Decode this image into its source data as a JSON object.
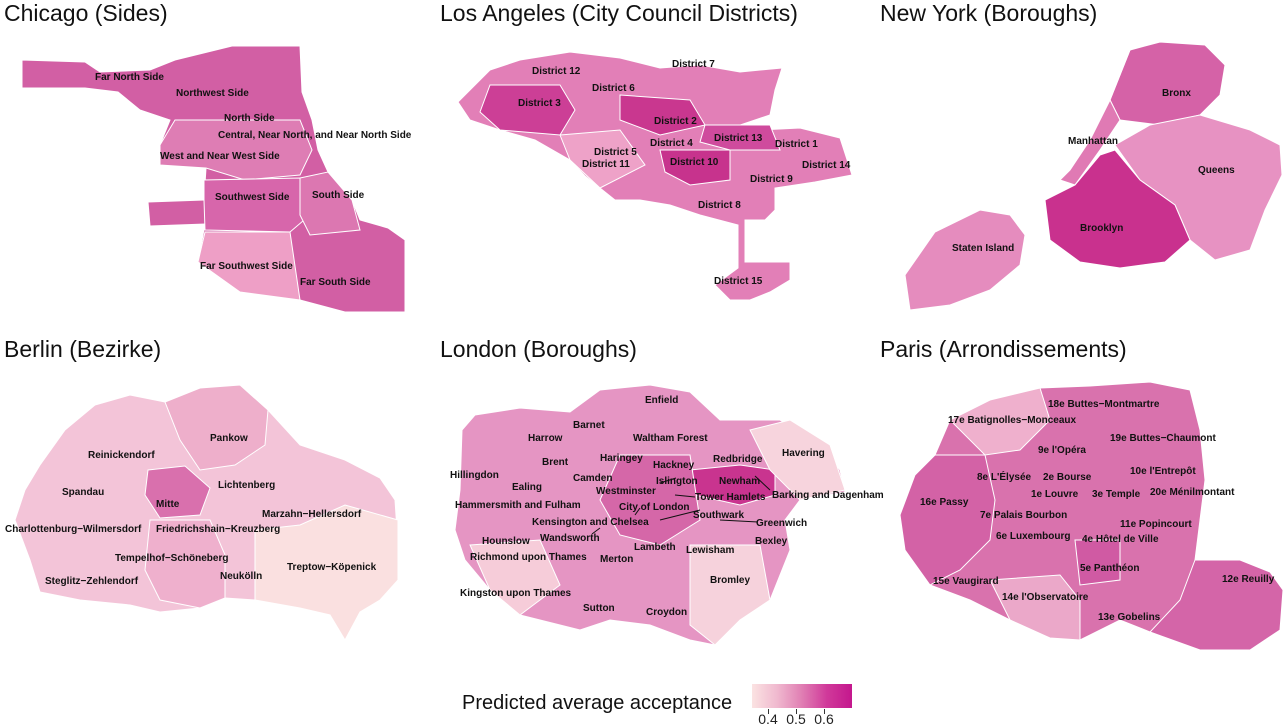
{
  "panels": [
    {
      "id": "chicago",
      "title": "Chicago (Sides)",
      "color": "#d25fa4",
      "regions": [
        {
          "name": "Far North Side",
          "value": 0.63
        },
        {
          "name": "Northwest Side",
          "value": 0.57
        },
        {
          "name": "North Side",
          "value": 0.58
        },
        {
          "name": "Central, Near North, and Near North Side",
          "value": 0.62
        },
        {
          "name": "West and Near West Side",
          "value": 0.58
        },
        {
          "name": "Southwest Side",
          "value": 0.6
        },
        {
          "name": "South Side",
          "value": 0.56
        },
        {
          "name": "Far Southwest Side",
          "value": 0.5
        },
        {
          "name": "Far South Side",
          "value": 0.6
        }
      ]
    },
    {
      "id": "los_angeles",
      "title": "Los Angeles (City Council Districts)",
      "color": "#d45ea4",
      "regions": [
        {
          "name": "District 12",
          "value": 0.55
        },
        {
          "name": "District 7",
          "value": 0.56
        },
        {
          "name": "District 6",
          "value": 0.58
        },
        {
          "name": "District 3",
          "value": 0.64
        },
        {
          "name": "District 2",
          "value": 0.63
        },
        {
          "name": "District 4",
          "value": 0.56
        },
        {
          "name": "District 13",
          "value": 0.63
        },
        {
          "name": "District 1",
          "value": 0.6
        },
        {
          "name": "District 5",
          "value": 0.52
        },
        {
          "name": "District 11",
          "value": 0.54
        },
        {
          "name": "District 10",
          "value": 0.64
        },
        {
          "name": "District 14",
          "value": 0.61
        },
        {
          "name": "District 9",
          "value": 0.6
        },
        {
          "name": "District 8",
          "value": 0.55
        },
        {
          "name": "District 15",
          "value": 0.58
        }
      ]
    },
    {
      "id": "new_york",
      "title": "New York (Boroughs)",
      "color": "#e085bb",
      "regions": [
        {
          "name": "Bronx",
          "value": 0.57
        },
        {
          "name": "Manhattan",
          "value": 0.55
        },
        {
          "name": "Queens",
          "value": 0.52
        },
        {
          "name": "Brooklyn",
          "value": 0.66
        },
        {
          "name": "Staten Island",
          "value": 0.52
        }
      ]
    },
    {
      "id": "berlin",
      "title": "Berlin (Bezirke)",
      "color": "#efb7cf",
      "regions": [
        {
          "name": "Reinickendorf",
          "value": 0.47
        },
        {
          "name": "Pankow",
          "value": 0.49
        },
        {
          "name": "Spandau",
          "value": 0.47
        },
        {
          "name": "Mitte",
          "value": 0.59
        },
        {
          "name": "Lichtenberg",
          "value": 0.47
        },
        {
          "name": "Marzahn−Hellersdorf",
          "value": 0.43
        },
        {
          "name": "Charlottenburg−Wilmersdorf",
          "value": 0.49
        },
        {
          "name": "Friedrichshain−Kreuzberg",
          "value": 0.52
        },
        {
          "name": "Tempelhof−Schöneberg",
          "value": 0.5
        },
        {
          "name": "Steglitz−Zehlendorf",
          "value": 0.48
        },
        {
          "name": "Neukölln",
          "value": 0.45
        },
        {
          "name": "Treptow−Köpenick",
          "value": 0.39
        }
      ]
    },
    {
      "id": "london",
      "title": "London (Boroughs)",
      "color": "#e391c1",
      "regions": [
        {
          "name": "Enfield",
          "value": 0.55
        },
        {
          "name": "Barnet",
          "value": 0.47
        },
        {
          "name": "Harrow",
          "value": 0.51
        },
        {
          "name": "Waltham Forest",
          "value": 0.6
        },
        {
          "name": "Havering",
          "value": 0.42
        },
        {
          "name": "Haringey",
          "value": 0.56
        },
        {
          "name": "Redbridge",
          "value": 0.58
        },
        {
          "name": "Brent",
          "value": 0.54
        },
        {
          "name": "Hackney",
          "value": 0.6
        },
        {
          "name": "Camden",
          "value": 0.52
        },
        {
          "name": "Hillingdon",
          "value": 0.51
        },
        {
          "name": "Islington",
          "value": 0.6
        },
        {
          "name": "Newham",
          "value": 0.66
        },
        {
          "name": "Ealing",
          "value": 0.53
        },
        {
          "name": "Westminster",
          "value": 0.51
        },
        {
          "name": "Tower Hamlets",
          "value": 0.63
        },
        {
          "name": "Barking and Dagenham",
          "value": 0.56
        },
        {
          "name": "Hammersmith and Fulham",
          "value": 0.52
        },
        {
          "name": "City of London",
          "value": 0.48
        },
        {
          "name": "Kensington and Chelsea",
          "value": 0.5
        },
        {
          "name": "Southwark",
          "value": 0.59
        },
        {
          "name": "Greenwich",
          "value": 0.55
        },
        {
          "name": "Hounslow",
          "value": 0.5
        },
        {
          "name": "Wandsworth",
          "value": 0.49
        },
        {
          "name": "Bexley",
          "value": 0.47
        },
        {
          "name": "Lambeth",
          "value": 0.56
        },
        {
          "name": "Lewisham",
          "value": 0.6
        },
        {
          "name": "Richmond upon Thames",
          "value": 0.42
        },
        {
          "name": "Merton",
          "value": 0.5
        },
        {
          "name": "Bromley",
          "value": 0.44
        },
        {
          "name": "Kingston upon Thames",
          "value": 0.45
        },
        {
          "name": "Sutton",
          "value": 0.51
        },
        {
          "name": "Croydon",
          "value": 0.52
        }
      ]
    },
    {
      "id": "paris",
      "title": "Paris (Arrondissements)",
      "color": "#d86aaa",
      "regions": [
        {
          "name": "18e Buttes−Montmartre",
          "value": 0.57
        },
        {
          "name": "17e Batignolles−Monceaux",
          "value": 0.5
        },
        {
          "name": "19e Buttes−Chaumont",
          "value": 0.6
        },
        {
          "name": "9e l'Opéra",
          "value": 0.55
        },
        {
          "name": "10e l'Entrepôt",
          "value": 0.57
        },
        {
          "name": "8e L'Élysée",
          "value": 0.57
        },
        {
          "name": "2e Bourse",
          "value": 0.55
        },
        {
          "name": "1e Louvre",
          "value": 0.58
        },
        {
          "name": "3e Temple",
          "value": 0.55
        },
        {
          "name": "20e Ménilmontant",
          "value": 0.52
        },
        {
          "name": "16e Passy",
          "value": 0.6
        },
        {
          "name": "7e Palais Bourbon",
          "value": 0.56
        },
        {
          "name": "11e Popincourt",
          "value": 0.55
        },
        {
          "name": "6e Luxembourg",
          "value": 0.55
        },
        {
          "name": "4e Hôtel de Ville",
          "value": 0.6
        },
        {
          "name": "5e Panthéon",
          "value": 0.61
        },
        {
          "name": "15e Vaugirard",
          "value": 0.55
        },
        {
          "name": "12e Reuilly",
          "value": 0.6
        },
        {
          "name": "14e l'Observatoire",
          "value": 0.5
        },
        {
          "name": "13e Gobelins",
          "value": 0.53
        }
      ]
    }
  ],
  "legend": {
    "title": "Predicted average acceptance",
    "ticks": [
      "0.4",
      "0.5",
      "0.6"
    ],
    "gradient": [
      "#fbe3e2",
      "#f0b9cf",
      "#e07eb3",
      "#d0399a",
      "#c4178d"
    ]
  }
}
